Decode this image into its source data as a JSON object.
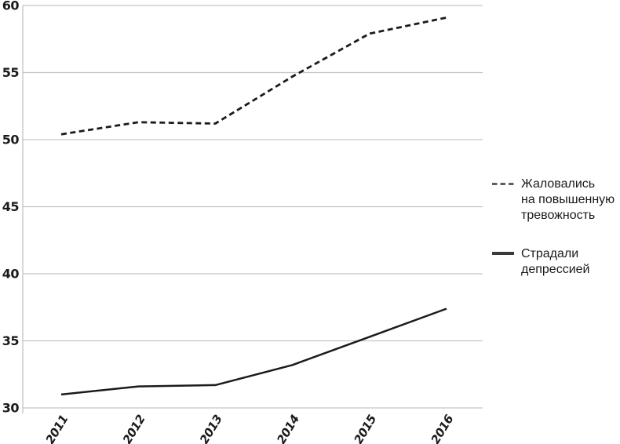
{
  "style": {
    "background": "#ffffff",
    "grid_color": "#c5c5c5",
    "axis_color": "#bdbdbd",
    "text_color": "#1a1a1a",
    "legend_dash_color": "#5e5e5e",
    "legend_solid_color": "#3a3a3a"
  },
  "chart_data": {
    "type": "line",
    "categories": [
      "2011",
      "2012",
      "2013",
      "2014",
      "2015",
      "2016"
    ],
    "yticks": [
      30,
      35,
      40,
      45,
      50,
      55,
      60
    ],
    "ylim": [
      30,
      60
    ],
    "grid": true,
    "legend_position": "right",
    "series": [
      {
        "id": "anxiety",
        "name": "Жаловались на повышенную тревожность",
        "legend_label": "Жаловались\nна повышенную\nтревожность",
        "line_style": "dashed",
        "color": "#1b1b1b",
        "values": [
          50.4,
          51.3,
          51.2,
          54.7,
          57.9,
          59.1
        ]
      },
      {
        "id": "depression",
        "name": "Страдали депрессией",
        "legend_label": "Страдали\nдепрессией",
        "line_style": "solid",
        "color": "#1b1b1b",
        "values": [
          31.0,
          31.6,
          31.7,
          33.2,
          35.3,
          37.4
        ]
      }
    ]
  }
}
